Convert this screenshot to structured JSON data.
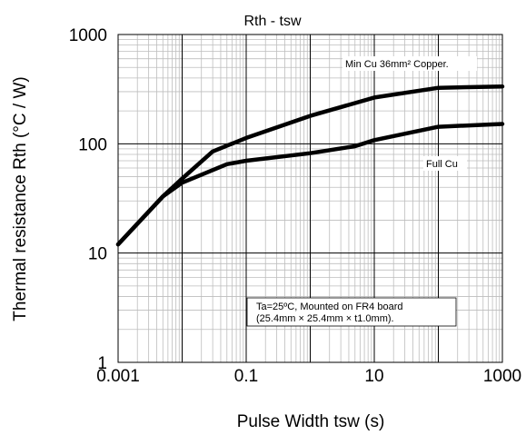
{
  "chart_data": {
    "type": "line",
    "title": "Rth - tsw",
    "xlabel": "Pulse Width tsw (s)",
    "ylabel": "Thermal resistance Rth (°C / W)",
    "xscale": "log",
    "yscale": "log",
    "xlim": [
      0.001,
      1000
    ],
    "ylim": [
      1,
      1000
    ],
    "x_ticks": [
      "0.001",
      "0.1",
      "10",
      "1000"
    ],
    "y_ticks": [
      "1",
      "10",
      "100",
      "1000"
    ],
    "grid": true,
    "series": [
      {
        "name": "Min Cu 36mm² Copper.",
        "x": [
          0.001,
          0.005,
          0.01,
          0.03,
          0.1,
          1,
          10,
          100,
          1000
        ],
        "y": [
          12,
          33,
          48,
          85,
          113,
          180,
          265,
          325,
          335
        ]
      },
      {
        "name": "Full Cu",
        "x": [
          0.001,
          0.005,
          0.01,
          0.05,
          0.1,
          1,
          5,
          10,
          100,
          1000
        ],
        "y": [
          12,
          33,
          44,
          65,
          70,
          82,
          95,
          108,
          143,
          152
        ]
      }
    ],
    "annotations": [
      "Ta=25ºC, Mounted on FR4 board",
      "(25.4mm × 25.4mm × t1.0mm)."
    ]
  }
}
